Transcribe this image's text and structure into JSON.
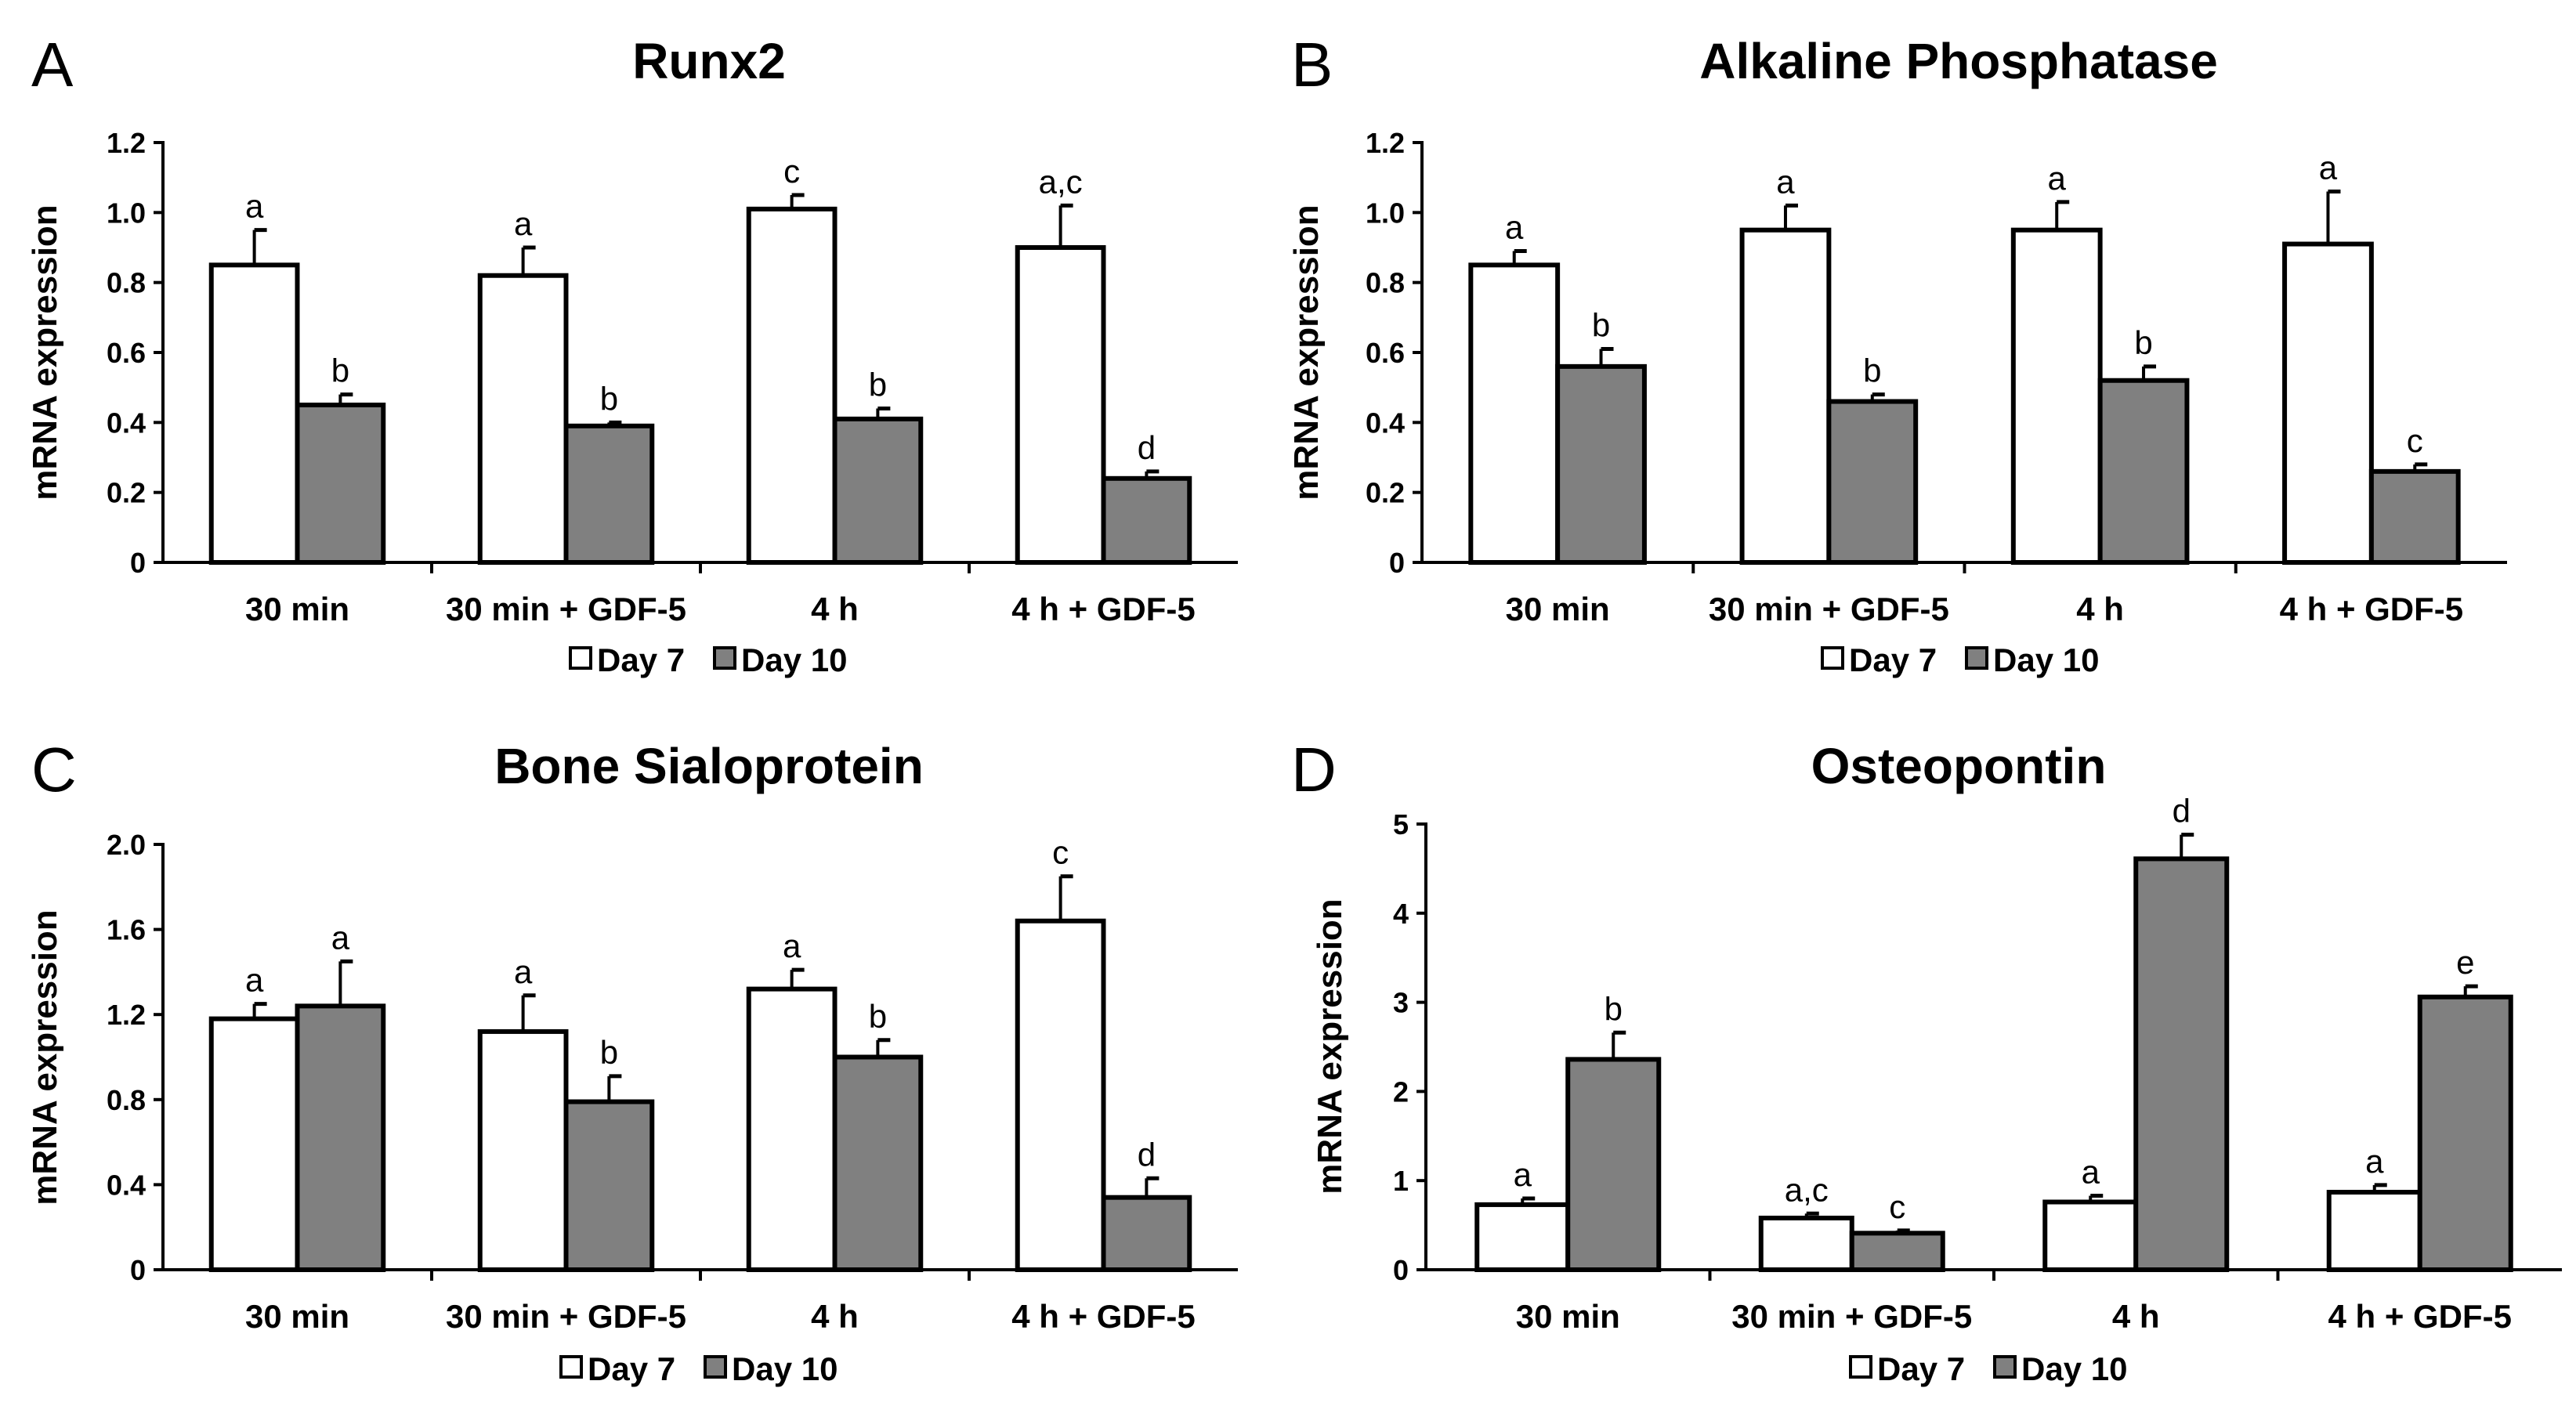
{
  "colors": {
    "day7": "#ffffff",
    "day10": "#808080",
    "stroke": "#000000"
  },
  "chart_data": [
    {
      "panel": "A",
      "type": "bar",
      "title": "Runx2",
      "ylabel": "mRNA expression",
      "ylim": [
        0,
        1.2
      ],
      "yticks": [
        "0",
        "0.2",
        "0.4",
        "0.6",
        "0.8",
        "1.0",
        "1.2"
      ],
      "categories": [
        "30 min",
        "30 min + GDF-5",
        "4 h",
        "4 h + GDF-5"
      ],
      "series": [
        {
          "name": "Day 7",
          "values": [
            0.85,
            0.82,
            1.01,
            0.9
          ],
          "errors": [
            0.1,
            0.08,
            0.04,
            0.12
          ],
          "labels": [
            "a",
            "a",
            "c",
            "a,c"
          ]
        },
        {
          "name": "Day 10",
          "values": [
            0.45,
            0.39,
            0.41,
            0.24
          ],
          "errors": [
            0.03,
            0.01,
            0.03,
            0.02
          ],
          "labels": [
            "b",
            "b",
            "b",
            "d"
          ]
        }
      ],
      "legend": [
        "Day 7",
        "Day 10"
      ]
    },
    {
      "panel": "B",
      "type": "bar",
      "title": "Alkaline Phosphatase",
      "ylabel": "mRNA expression",
      "ylim": [
        0,
        1.2
      ],
      "yticks": [
        "0",
        "0.2",
        "0.4",
        "0.6",
        "0.8",
        "1.0",
        "1.2"
      ],
      "categories": [
        "30 min",
        "30 min + GDF-5",
        "4 h",
        "4 h + GDF-5"
      ],
      "series": [
        {
          "name": "Day 7",
          "values": [
            0.85,
            0.95,
            0.95,
            0.91
          ],
          "errors": [
            0.04,
            0.07,
            0.08,
            0.15
          ],
          "labels": [
            "a",
            "a",
            "a",
            "a"
          ]
        },
        {
          "name": "Day 10",
          "values": [
            0.56,
            0.46,
            0.52,
            0.26
          ],
          "errors": [
            0.05,
            0.02,
            0.04,
            0.02
          ],
          "labels": [
            "b",
            "b",
            "b",
            "c"
          ]
        }
      ],
      "legend": [
        "Day 7",
        "Day 10"
      ]
    },
    {
      "panel": "C",
      "type": "bar",
      "title": "Bone Sialoprotein",
      "ylabel": "mRNA expression",
      "ylim": [
        0,
        2.0
      ],
      "yticks": [
        "0",
        "0.4",
        "0.8",
        "1.2",
        "1.6",
        "2.0"
      ],
      "categories": [
        "30 min",
        "30 min + GDF-5",
        "4 h",
        "4 h + GDF-5"
      ],
      "series": [
        {
          "name": "Day 7",
          "values": [
            1.18,
            1.12,
            1.32,
            1.64
          ],
          "errors": [
            0.07,
            0.17,
            0.09,
            0.21
          ],
          "labels": [
            "a",
            "a",
            "a",
            "c"
          ]
        },
        {
          "name": "Day 10",
          "values": [
            1.24,
            0.79,
            1.0,
            0.34
          ],
          "errors": [
            0.21,
            0.12,
            0.08,
            0.09
          ],
          "labels": [
            "a",
            "b",
            "b",
            "d"
          ]
        }
      ],
      "legend": [
        "Day 7",
        "Day 10"
      ]
    },
    {
      "panel": "D",
      "type": "bar",
      "title": "Osteopontin",
      "ylabel": "mRNA expression",
      "ylim": [
        0,
        5
      ],
      "yticks": [
        "0",
        "1",
        "2",
        "3",
        "4",
        "5"
      ],
      "categories": [
        "30 min",
        "30 min + GDF-5",
        "4 h",
        "4 h + GDF-5"
      ],
      "series": [
        {
          "name": "Day 7",
          "values": [
            0.73,
            0.58,
            0.76,
            0.87
          ],
          "errors": [
            0.07,
            0.05,
            0.07,
            0.08
          ],
          "labels": [
            "a",
            "a,c",
            "a",
            "a"
          ]
        },
        {
          "name": "Day 10",
          "values": [
            2.36,
            0.41,
            4.61,
            3.06
          ],
          "errors": [
            0.3,
            0.03,
            0.27,
            0.12
          ],
          "labels": [
            "b",
            "c",
            "d",
            "e"
          ]
        }
      ],
      "legend": [
        "Day 7",
        "Day 10"
      ]
    }
  ]
}
